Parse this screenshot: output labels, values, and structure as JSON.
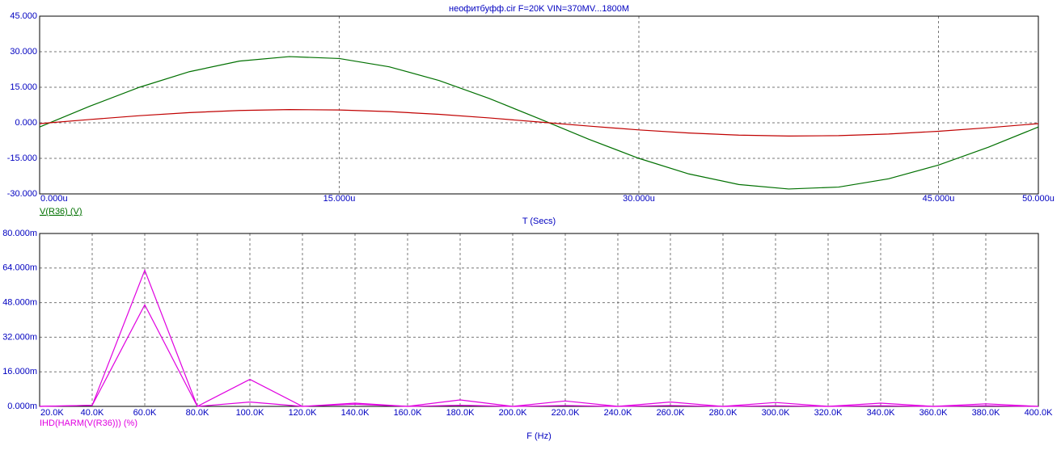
{
  "chart_data": [
    {
      "type": "line",
      "title": "неофитбуфф.cir F=20K VIN=370MV...1800M",
      "x_label": "T (Secs)",
      "x": [
        0,
        2.5e-06,
        5e-06,
        7.5e-06,
        1e-05,
        1.25e-05,
        1.5e-05,
        1.75e-05,
        2e-05,
        2.25e-05,
        2.5e-05,
        2.75e-05,
        3e-05,
        3.25e-05,
        3.5e-05,
        3.75e-05,
        4e-05,
        4.25e-05,
        4.5e-05,
        4.75e-05,
        5e-05
      ],
      "series": [
        {
          "name": "V(R36) (V)",
          "color": "#007000",
          "values": [
            -1.76,
            6.96,
            15.0,
            21.57,
            26.03,
            27.94,
            27.12,
            23.64,
            17.85,
            10.31,
            1.76,
            -6.96,
            -15.0,
            -21.57,
            -26.03,
            -27.94,
            -27.12,
            -23.64,
            -17.85,
            -10.31,
            -1.76
          ]
        },
        {
          "color": "#c00000",
          "values": [
            -0.35,
            1.39,
            3.0,
            4.31,
            5.21,
            5.59,
            5.42,
            4.73,
            3.57,
            2.06,
            0.35,
            -1.39,
            -3.0,
            -4.31,
            -5.21,
            -5.59,
            -5.42,
            -4.73,
            -3.57,
            -2.06,
            -0.35
          ]
        }
      ],
      "xlim": [
        0,
        5e-05
      ],
      "xticks": [
        {
          "value": 0,
          "label": "0.000u"
        },
        {
          "value": 1.5e-05,
          "label": "15.000u"
        },
        {
          "value": 3e-05,
          "label": "30.000u"
        },
        {
          "value": 4.5e-05,
          "label": "45.000u"
        },
        {
          "value": 5e-05,
          "label": "50.000u"
        }
      ],
      "ylim": [
        -30,
        45
      ],
      "yticks": [
        {
          "value": 45,
          "label": "45.000"
        },
        {
          "value": 30,
          "label": "30.000"
        },
        {
          "value": 15,
          "label": "15.000"
        },
        {
          "value": 0,
          "label": "0.000"
        },
        {
          "value": -15,
          "label": "-15.000"
        },
        {
          "value": -30,
          "label": "-30.000"
        }
      ],
      "grid": true
    },
    {
      "type": "line",
      "x_label": "F (Hz)",
      "x": [
        20000,
        40000,
        60000,
        80000,
        100000,
        120000,
        140000,
        160000,
        180000,
        200000,
        220000,
        240000,
        260000,
        280000,
        300000,
        320000,
        340000,
        360000,
        380000,
        400000
      ],
      "series": [
        {
          "name": "IHD(HARM(V(R36))) (%)",
          "color": "#e000e0",
          "values": [
            0,
            0.0005,
            0.063,
            0,
            0.0125,
            0,
            0.0015,
            0,
            0.003,
            0,
            0.0025,
            0,
            0.002,
            0,
            0.0018,
            0,
            0.0015,
            0,
            0.0012,
            0
          ]
        },
        {
          "color": "#e000e0",
          "values": [
            0,
            0.0005,
            0.047,
            0,
            0.002,
            0,
            0.001,
            0,
            0.0005,
            0,
            0.0004,
            0,
            0.0004,
            0,
            0.0003,
            0,
            0.0003,
            0,
            0.0003,
            0
          ]
        }
      ],
      "xlim": [
        20000,
        400000
      ],
      "xticks": [
        {
          "value": 20000,
          "label": "20.0K"
        },
        {
          "value": 40000,
          "label": "40.0K"
        },
        {
          "value": 60000,
          "label": "60.0K"
        },
        {
          "value": 80000,
          "label": "80.0K"
        },
        {
          "value": 100000,
          "label": "100.0K"
        },
        {
          "value": 120000,
          "label": "120.0K"
        },
        {
          "value": 140000,
          "label": "140.0K"
        },
        {
          "value": 160000,
          "label": "160.0K"
        },
        {
          "value": 180000,
          "label": "180.0K"
        },
        {
          "value": 200000,
          "label": "200.0K"
        },
        {
          "value": 220000,
          "label": "220.0K"
        },
        {
          "value": 240000,
          "label": "240.0K"
        },
        {
          "value": 260000,
          "label": "260.0K"
        },
        {
          "value": 280000,
          "label": "280.0K"
        },
        {
          "value": 300000,
          "label": "300.0K"
        },
        {
          "value": 320000,
          "label": "320.0K"
        },
        {
          "value": 340000,
          "label": "340.0K"
        },
        {
          "value": 360000,
          "label": "360.0K"
        },
        {
          "value": 380000,
          "label": "380.0K"
        },
        {
          "value": 400000,
          "label": "400.0K"
        }
      ],
      "ylim": [
        0,
        0.08
      ],
      "yticks": [
        {
          "value": 0.08,
          "label": "80.000m"
        },
        {
          "value": 0.064,
          "label": "64.000m"
        },
        {
          "value": 0.048,
          "label": "48.000m"
        },
        {
          "value": 0.032,
          "label": "32.000m"
        },
        {
          "value": 0.016,
          "label": "16.000m"
        },
        {
          "value": 0,
          "label": "0.000m"
        }
      ],
      "grid": true
    }
  ]
}
